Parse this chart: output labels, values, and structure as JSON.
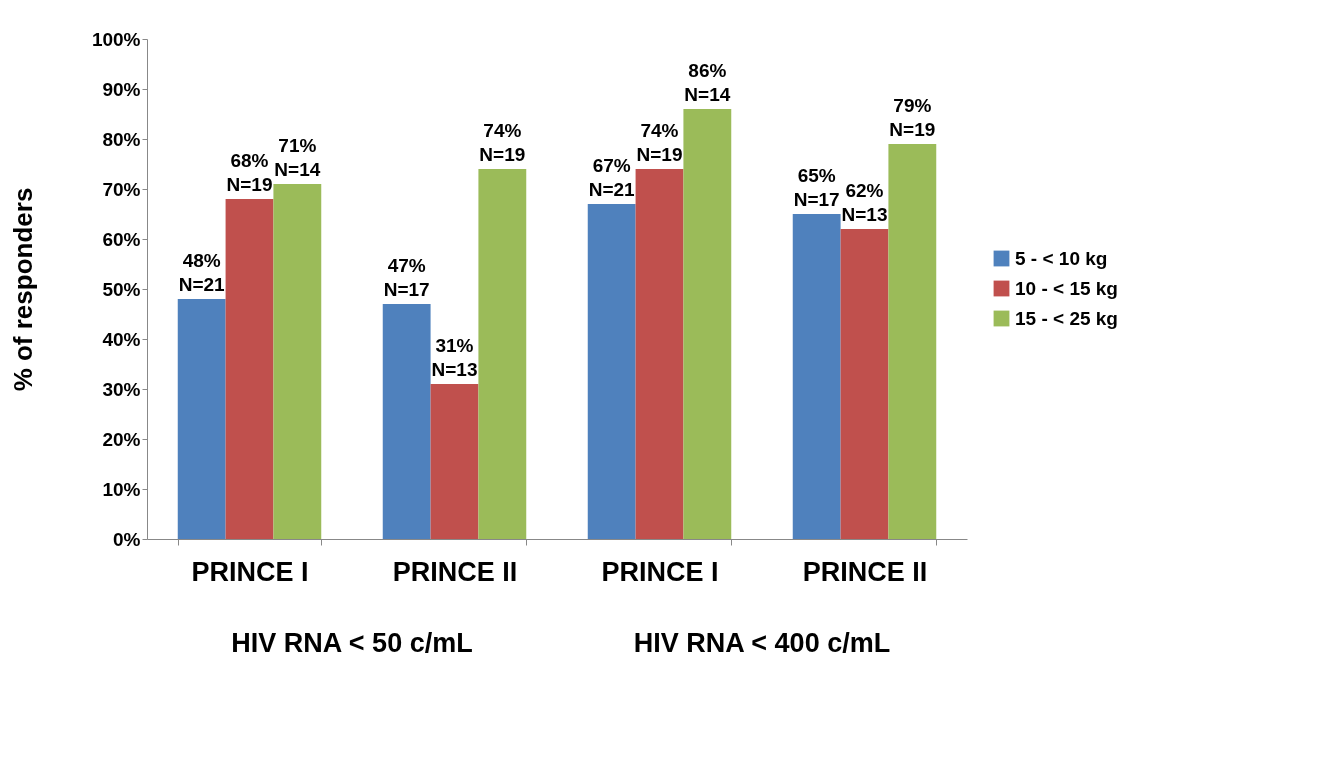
{
  "chart_data": {
    "type": "bar",
    "ylabel": "% of responders",
    "categories": [
      "PRINCE I",
      "PRINCE II",
      "PRINCE I",
      "PRINCE II"
    ],
    "series": [
      {
        "name": "5 - < 10 kg",
        "color": "#4f81bd",
        "values": [
          48,
          47,
          67,
          65
        ],
        "value_labels": [
          "48%\nN=21",
          "47%\nN=17",
          "67%\nN=21",
          "65%\nN=17"
        ]
      },
      {
        "name": "10 - < 15 kg",
        "color": "#c0504d",
        "values": [
          68,
          31,
          74,
          62
        ],
        "value_labels": [
          "68%\nN=19",
          "31%\nN=13",
          "74%\nN=19",
          "62%\nN=13"
        ]
      },
      {
        "name": "15 - < 25 kg",
        "color": "#9bbb59",
        "values": [
          71,
          74,
          86,
          79
        ],
        "value_labels": [
          "71%\nN=14",
          "74%\nN=19",
          "86%\nN=14",
          "79%\nN=19"
        ]
      }
    ],
    "ylim": [
      0,
      100
    ],
    "yticks": [
      {
        "value": 0,
        "label": "0%"
      },
      {
        "value": 10,
        "label": "10%"
      },
      {
        "value": 20,
        "label": "20%"
      },
      {
        "value": 30,
        "label": "30%"
      },
      {
        "value": 40,
        "label": "40%"
      },
      {
        "value": 50,
        "label": "50%"
      },
      {
        "value": 60,
        "label": "60%"
      },
      {
        "value": 70,
        "label": "70%"
      },
      {
        "value": 80,
        "label": "80%"
      },
      {
        "value": 90,
        "label": "90%"
      },
      {
        "value": 100,
        "label": "100%"
      }
    ],
    "grid": false,
    "legend": "right",
    "annotations": [
      "HIV RNA < 50 c/mL",
      "HIV RNA < 400 c/mL"
    ]
  }
}
